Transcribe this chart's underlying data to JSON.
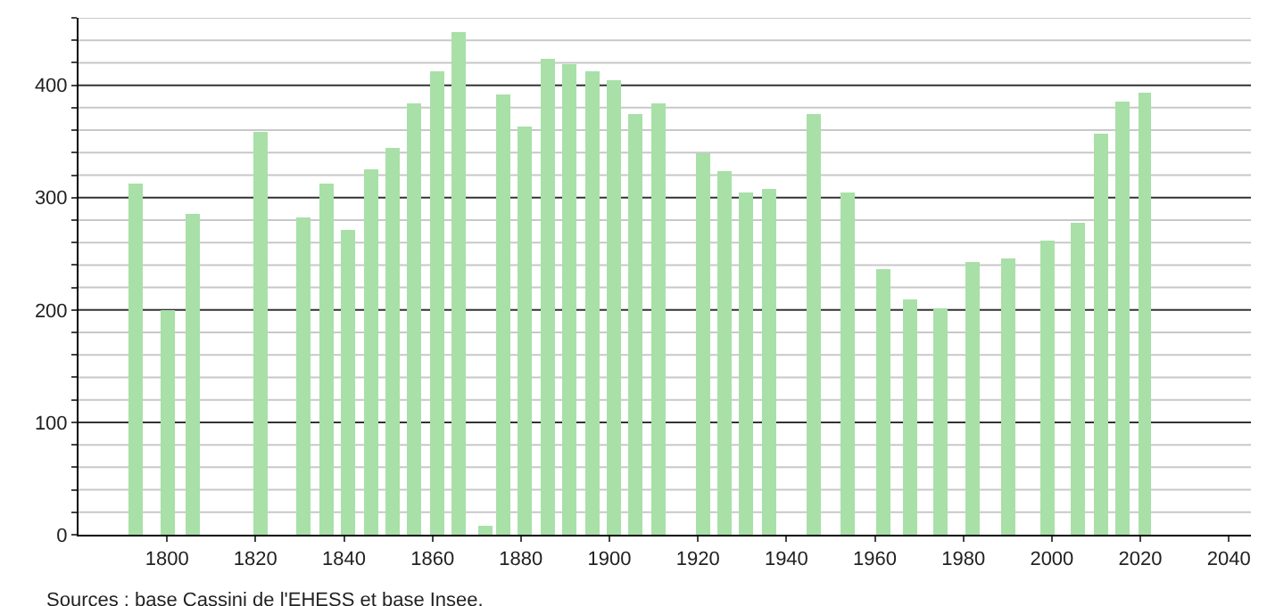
{
  "chart_data": {
    "type": "bar",
    "x": [
      1793,
      1800,
      1806,
      1821,
      1831,
      1836,
      1841,
      1846,
      1851,
      1856,
      1861,
      1866,
      1872,
      1876,
      1881,
      1886,
      1891,
      1896,
      1901,
      1906,
      1911,
      1921,
      1926,
      1931,
      1936,
      1946,
      1954,
      1962,
      1968,
      1975,
      1982,
      1990,
      1999,
      2006,
      2011,
      2016,
      2021
    ],
    "values": [
      312,
      200,
      285,
      358,
      282,
      313,
      272,
      325,
      344,
      384,
      412,
      447,
      8,
      392,
      364,
      423,
      419,
      412,
      405,
      375,
      384,
      339,
      324,
      304,
      308,
      375,
      304,
      237,
      210,
      201,
      242,
      246,
      262,
      277,
      357,
      386,
      394
    ],
    "color": "#a8e0a8",
    "xlim": [
      1780,
      2045
    ],
    "xticks": [
      1800,
      1820,
      1840,
      1860,
      1880,
      1900,
      1920,
      1940,
      1960,
      1980,
      2000,
      2020,
      2040
    ],
    "ylim": [
      0,
      460
    ],
    "yticks": [
      0,
      {
        "value": 20,
        "label": null
      },
      {
        "value": 40,
        "label": null
      },
      {
        "value": 60,
        "label": null
      },
      {
        "value": 80,
        "label": null
      },
      100,
      {
        "value": 120,
        "label": null
      },
      {
        "value": 140,
        "label": null
      },
      {
        "value": 160,
        "label": null
      },
      {
        "value": 180,
        "label": null
      },
      200,
      {
        "value": 220,
        "label": null
      },
      {
        "value": 240,
        "label": null
      },
      {
        "value": 260,
        "label": null
      },
      {
        "value": 280,
        "label": null
      },
      300,
      {
        "value": 320,
        "label": null
      },
      {
        "value": 340,
        "label": null
      },
      {
        "value": 360,
        "label": null
      },
      {
        "value": 380,
        "label": null
      },
      400,
      {
        "value": 420,
        "label": null
      },
      {
        "value": 440,
        "label": null
      },
      {
        "value": 460,
        "label": null
      }
    ],
    "grid": "y",
    "annotations": [
      "Sources : base Cassini de l'EHESS et base Insee."
    ]
  }
}
